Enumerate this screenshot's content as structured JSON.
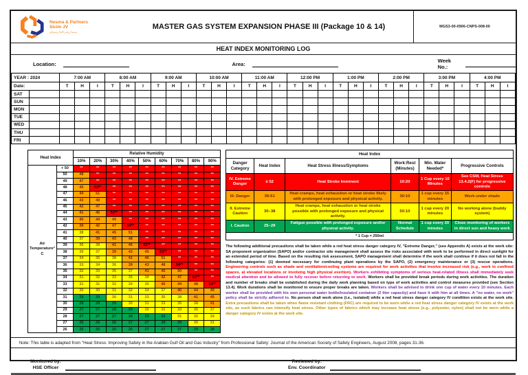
{
  "header": {
    "company_line1": "Nesma & Partners",
    "company_line2": "Sicim JV",
    "company_tagline": "نسما وشركاها وسيكم",
    "title": "MASTER GAS SYSTEM EXPANSION PHASE III (Package 10 & 14)",
    "doc_number": "MGS3-00-0906-CNPS-008-00",
    "subtitle": "HEAT INDEX MONITORING LOG"
  },
  "fields": {
    "location_label": "Location:",
    "area_label": "Area:",
    "week_label": "Week No.:"
  },
  "log_table": {
    "year_label": "YEAR : 2024",
    "date_label": "Date:",
    "times": [
      "7:00 AM",
      "8:00 AM",
      "9:00 AM",
      "10:00 AM",
      "11:00 AM",
      "12:00 PM",
      "1:00 PM",
      "2:00 PM",
      "3:00 PM",
      "4:00 PM"
    ],
    "sub_columns": [
      "T",
      "H",
      "I"
    ],
    "days": [
      "SAT",
      "SUN",
      "MON",
      "TUE",
      "WED",
      "THU",
      "FRI"
    ]
  },
  "heat_matrix": {
    "corner_label": "Heat Index",
    "humidity_label": "Relative Humidity",
    "humidity_cols": [
      "10%",
      "20%",
      "30%",
      "40%",
      "50%",
      "60%",
      "70%",
      "80%",
      "90%"
    ],
    "axis_label": "Air Temperature° C",
    "rows": [
      {
        "temp": "+ 50",
        "values": [
          "**",
          "**",
          "**",
          "**",
          "**",
          "**",
          "**",
          "**",
          "**"
        ]
      },
      {
        "temp": "50",
        "values": [
          "48",
          "**",
          "**",
          "**",
          "**",
          "**",
          "**",
          "**",
          "**"
        ]
      },
      {
        "temp": "49",
        "values": [
          "47",
          "**",
          "**",
          "**",
          "**",
          "**",
          "**",
          "**",
          "**"
        ]
      },
      {
        "temp": "48",
        "values": [
          "45",
          "53**",
          "**",
          "**",
          "**",
          "**",
          "**",
          "**",
          "**"
        ]
      },
      {
        "temp": "47",
        "values": [
          "44",
          "51",
          "**",
          "**",
          "**",
          "**",
          "**",
          "**",
          "**"
        ]
      },
      {
        "temp": "46",
        "values": [
          "43",
          "49",
          "**",
          "**",
          "**",
          "**",
          "**",
          "**",
          "**"
        ]
      },
      {
        "temp": "45",
        "values": [
          "42",
          "47",
          "**",
          "**",
          "**",
          "**",
          "**",
          "**",
          "**"
        ]
      },
      {
        "temp": "44",
        "values": [
          "41",
          "46",
          "52**",
          "**",
          "**",
          "**",
          "**",
          "**",
          "**"
        ]
      },
      {
        "temp": "43",
        "values": [
          "40",
          "44",
          "49",
          "**",
          "**",
          "**",
          "**",
          "**",
          "**"
        ]
      },
      {
        "temp": "42",
        "values": [
          "39",
          "42",
          "47",
          "54**",
          "**",
          "**",
          "**",
          "**",
          "**"
        ]
      },
      {
        "temp": "41",
        "values": [
          "38",
          "41",
          "45",
          "51",
          "**",
          "**",
          "**",
          "**",
          "**"
        ]
      },
      {
        "temp": "40",
        "values": [
          "37",
          "39",
          "43",
          "48",
          "**",
          "**",
          "**",
          "**",
          "**"
        ]
      },
      {
        "temp": "39",
        "values": [
          "36",
          "38",
          "41",
          "46",
          "52**",
          "**",
          "**",
          "**",
          "**"
        ]
      },
      {
        "temp": "38",
        "values": [
          "35",
          "37",
          "39",
          "43",
          "49",
          "53**",
          "**",
          "**",
          "**"
        ]
      },
      {
        "temp": "37",
        "values": [
          "34",
          "35",
          "38",
          "41",
          "46",
          "51",
          "**",
          "**",
          "**"
        ]
      },
      {
        "temp": "36",
        "values": [
          "33",
          "34",
          "36",
          "39",
          "43",
          "48",
          "54**",
          "**",
          "**"
        ]
      },
      {
        "temp": "35",
        "values": [
          "32",
          "33",
          "35",
          "37",
          "41",
          "45",
          "50",
          "**",
          "**"
        ]
      },
      {
        "temp": "34",
        "values": [
          "31",
          "32",
          "33",
          "35",
          "38",
          "42",
          "47",
          "52**",
          "**"
        ]
      },
      {
        "temp": "33",
        "values": [
          "31",
          "31",
          "32",
          "34",
          "36",
          "40",
          "44",
          "48",
          "54**"
        ]
      },
      {
        "temp": "32",
        "values": [
          "30",
          "30",
          "31",
          "32",
          "34",
          "37",
          "40",
          "44",
          "49"
        ]
      },
      {
        "temp": "31",
        "values": [
          "29",
          "29",
          "30",
          "31",
          "33",
          "35",
          "38",
          "41",
          "45"
        ]
      },
      {
        "temp": "30",
        "values": [
          "28",
          "28",
          "29",
          "30",
          "31",
          "33",
          "35",
          "38",
          "41"
        ]
      },
      {
        "temp": "29",
        "values": [
          "27",
          "27",
          "28",
          "29",
          "30",
          "31",
          "33",
          "35",
          "37"
        ]
      },
      {
        "temp": "28",
        "values": [
          "27",
          "27",
          "27",
          "28",
          "28",
          "29",
          "31",
          "32",
          "34"
        ]
      },
      {
        "temp": "27",
        "values": [
          "26",
          "26",
          "26",
          "27",
          "27",
          "28",
          "29",
          "30",
          "31"
        ]
      },
      {
        "temp": "26",
        "values": [
          "25",
          "25",
          "26",
          "26",
          "27",
          "27",
          "27",
          "28",
          "28"
        ]
      }
    ]
  },
  "danger_table": {
    "title": "Heat Index",
    "headers": [
      "Danger Category",
      "Heat Index",
      "Heat Stress Illness/Symptoms",
      "Work:Rest (Minutes)",
      "Min. Water Needed*",
      "Progressive Controls"
    ],
    "rows": [
      {
        "category": "IV. Extreme Danger",
        "heat_index": "≥ 52",
        "symptoms": "Heat Stroke Imminent",
        "work_rest": "10:20",
        "water": "1 Cup every 10 Minutes",
        "controls": "See CSM, Heat Stress 13.4.2(F) for progressive controls",
        "color": "red"
      },
      {
        "category": "III. Danger",
        "heat_index": "39-51",
        "symptoms": "Heat cramps, heat exhaustion or heat stroke likely with prolonged exposure and physical activity.",
        "work_rest": "30:10",
        "water": "1 cup every 15 minutes",
        "controls": "Work under shade",
        "color": "orange"
      },
      {
        "category": "II. Extreme Caution",
        "heat_index": "30–38",
        "symptoms": "Heat cramps, heat exhaustion or heat stroke possible with prolonged exposure and physical activity.",
        "work_rest": "50:10",
        "water": "1 cup every 20 minutes",
        "controls": "No working alone (buddy system)",
        "color": "yellow"
      },
      {
        "category": "I. Caution",
        "heat_index": "25–29",
        "symptoms": "Fatigue possible with prolonged exposure and/or physical activity.",
        "work_rest": "Normal Schedule",
        "water": "1 cup every 20 minutes",
        "controls": "Close monitoring of workers in direct sun and heavy work",
        "color": "green"
      }
    ],
    "footnote": "* 1 Cup = 250ml"
  },
  "precautions": {
    "segments": [
      {
        "color": "#111111",
        "text": "The following additional precautions shall be taken while a red heat stress danger category IV, \"Extreme Danger,\" (see Appendix A) exists at the work site: SA proponent organization (SAPO) and/or contractor site management shall assess the risks associated with work to be performed in direct sunlight for an extended period of time. Based on the resulting risk assessment, SAPO management shall determine if the work shall continue if it does not fall in the following categories: (1) deemed necessary for continuing plant operations by the SAPO, (2) emergency maintenance or (3) rescue operations."
      },
      {
        "color": "#FF0000",
        "text": "Engineering controls such as shade and ventilation/cooling systems are required for work activities that involve increased risk (e.g., work in confined spaces, at elevated locations or involving high physical exertion)."
      },
      {
        "color": "#E5007E",
        "text": "Workers exhibiting symptoms of serious heat-related illness shall immediately seek medical attention and be allowed to fully recover before returning to work."
      },
      {
        "color": "#111111",
        "text": "Workers shall be provided break periods during work activities. The duration and number of breaks shall be established during the daily work planning based on type of work activities and control measures provided (see Section 13.4). Work durations shall be monitored to ensure proper breaks are taken."
      },
      {
        "color": "#7030A0",
        "text": "Workers shall be advised to drink one cup of water every 10 minutes. Each worker shall be provided with his own personal water bottle/insulated container (2 liter capacity) and have it with him at all times. A \"no water, no work\" policy shall be strictly adhered to."
      },
      {
        "color": "#111111",
        "text": "No person shall work alone (i.e., isolated) while a red heat stress danger category IV condition exists at the work site."
      },
      {
        "color": "#BF9000",
        "text": "Extra precautions shall be taken when flame resistant clothing (FRC) are required to be worn while a red heat stress danger category IV exists at the work site, as such fabrics can intensify heat stress. Other types of fabrics which may increase heat stress (e.g., polyester, nylon) shall not be worn while a danger category IV exists at the work site."
      }
    ]
  },
  "note": "Note: This table is adapted from \"Heat Stress: Improving Safety in the Arabian Gulf Oil and Gas Industry\" from Professional Safety: Journal of the American Society of Safety Engineers, August 2008, pages 31-36.",
  "signatures": {
    "monitored_label": "Monitored by:",
    "monitored_role": "HSE Officer",
    "reviewed_label": "Reviewed by:",
    "reviewed_role": "Env. Coordinator"
  },
  "colors": {
    "green": "#00A651",
    "yellow": "#FFFF00",
    "orange": "#FFA500",
    "red": "#FE0000",
    "brand_orange": "#F58220",
    "brand_blue": "#27348B"
  }
}
